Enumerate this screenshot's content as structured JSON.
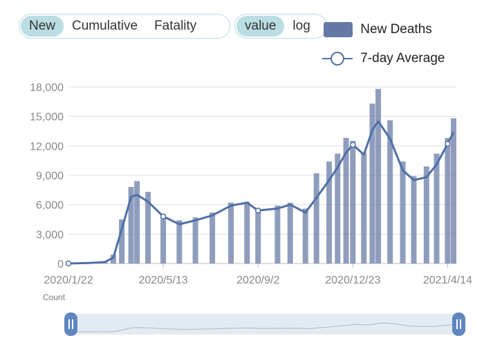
{
  "controls": {
    "mode": [
      {
        "label": "New",
        "active": true
      },
      {
        "label": "Cumulative",
        "active": false
      },
      {
        "label": "Fatality",
        "active": false
      }
    ],
    "scale": [
      {
        "label": "value",
        "active": true
      },
      {
        "label": "log",
        "active": false
      }
    ]
  },
  "colors": {
    "bars": "#7b8cb2",
    "avg_line": "#4f6fa6",
    "grid": "#dddddd",
    "axis_text": "#888888",
    "toggle_active": "#b9dde3"
  },
  "zoom_slider": {
    "start": 0,
    "end": 1
  },
  "chart_data": {
    "type": "bar+line",
    "x_tick_labels": [
      "2020/1/22",
      "2020/5/13",
      "2020/9/2",
      "2020/12/23",
      "2021/4/14"
    ],
    "y_tick_labels": [
      "0",
      "3,000",
      "6,000",
      "9,000",
      "12,000",
      "15,000",
      "18,000"
    ],
    "ylim": [
      0,
      18000
    ],
    "xlabel": "Count",
    "legend": {
      "position": "top-right"
    },
    "grid": true,
    "series": [
      {
        "name": "New Deaths",
        "kind": "bar",
        "x": [
          "2020-01-22",
          "2020-02-15",
          "2020-03-05",
          "2020-03-15",
          "2020-03-25",
          "2020-04-05",
          "2020-04-12",
          "2020-04-25",
          "2020-05-13",
          "2020-06-01",
          "2020-06-20",
          "2020-07-10",
          "2020-08-01",
          "2020-08-20",
          "2020-09-02",
          "2020-09-25",
          "2020-10-10",
          "2020-10-28",
          "2020-11-10",
          "2020-11-25",
          "2020-12-05",
          "2020-12-15",
          "2020-12-23",
          "2021-01-05",
          "2021-01-15",
          "2021-01-22",
          "2021-02-05",
          "2021-02-20",
          "2021-03-05",
          "2021-03-20",
          "2021-04-01",
          "2021-04-14",
          "2021-04-21"
        ],
        "values": [
          0,
          100,
          200,
          900,
          4500,
          7800,
          8400,
          7300,
          5000,
          4400,
          4700,
          5200,
          6200,
          6300,
          5600,
          5900,
          6200,
          5600,
          9200,
          10400,
          11200,
          12800,
          12500,
          11300,
          16300,
          17800,
          14600,
          10400,
          8900,
          9900,
          11200,
          12800,
          14800
        ]
      },
      {
        "name": "7-day Average",
        "kind": "line",
        "x": [
          "2020-01-22",
          "2020-02-15",
          "2020-03-05",
          "2020-03-15",
          "2020-03-25",
          "2020-04-05",
          "2020-04-12",
          "2020-04-25",
          "2020-05-13",
          "2020-06-01",
          "2020-06-20",
          "2020-07-10",
          "2020-08-01",
          "2020-08-20",
          "2020-09-02",
          "2020-09-25",
          "2020-10-10",
          "2020-10-28",
          "2020-11-10",
          "2020-11-25",
          "2020-12-05",
          "2020-12-15",
          "2020-12-23",
          "2021-01-05",
          "2021-01-15",
          "2021-01-22",
          "2021-02-05",
          "2021-02-20",
          "2021-03-05",
          "2021-03-20",
          "2021-04-01",
          "2021-04-14",
          "2021-04-21"
        ],
        "values": [
          0,
          50,
          150,
          600,
          3500,
          6800,
          7000,
          6300,
          4800,
          4000,
          4400,
          4900,
          5900,
          6200,
          5400,
          5600,
          6000,
          5200,
          6700,
          8500,
          9800,
          11300,
          12100,
          11100,
          13600,
          14500,
          12700,
          9500,
          8500,
          8800,
          10100,
          12200,
          13400
        ],
        "markers_at": [
          "2020-01-22",
          "2020-05-13",
          "2020-09-02",
          "2020-12-23",
          "2021-04-14"
        ]
      }
    ]
  }
}
